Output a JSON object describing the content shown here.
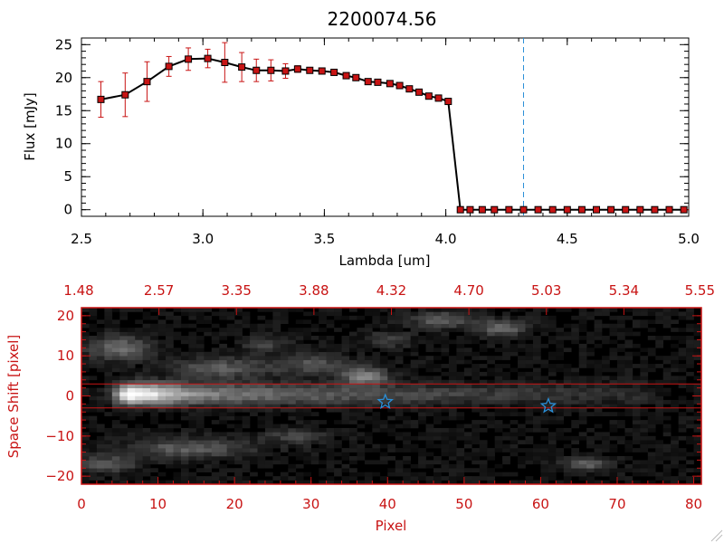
{
  "chart_data": [
    {
      "type": "line",
      "title": "2200074.56",
      "xlabel": "Lambda [um]",
      "ylabel": "Flux [mJy]",
      "xlim": [
        2.5,
        5.0
      ],
      "ylim": [
        -1,
        26
      ],
      "x_ticks": [
        2.5,
        3.0,
        3.5,
        4.0,
        4.5,
        5.0
      ],
      "x_tick_labels": [
        "2.5",
        "3.0",
        "3.5",
        "4.0",
        "4.5",
        "5.0"
      ],
      "y_ticks": [
        0,
        5,
        10,
        15,
        20,
        25
      ],
      "y_tick_labels": [
        "0",
        "5",
        "10",
        "15",
        "20",
        "25"
      ],
      "series": [
        {
          "x": [
            2.58,
            2.68,
            2.77,
            2.86,
            2.94,
            3.02,
            3.09,
            3.16,
            3.22,
            3.28,
            3.34,
            3.39,
            3.44,
            3.49,
            3.54,
            3.59,
            3.63,
            3.68,
            3.72,
            3.77,
            3.81,
            3.85,
            3.89,
            3.93,
            3.97,
            4.01,
            4.06,
            4.1,
            4.15,
            4.2,
            4.26,
            4.32,
            4.38,
            4.44,
            4.5,
            4.56,
            4.62,
            4.68,
            4.74,
            4.8,
            4.86,
            4.92,
            4.98
          ],
          "y": [
            16.7,
            17.4,
            19.4,
            21.7,
            22.8,
            22.9,
            22.3,
            21.6,
            21.1,
            21.1,
            21.0,
            21.3,
            21.1,
            21.0,
            20.8,
            20.3,
            20.0,
            19.4,
            19.3,
            19.1,
            18.8,
            18.3,
            17.8,
            17.2,
            16.9,
            16.4,
            0,
            0,
            0,
            0,
            0,
            0,
            0,
            0,
            0,
            0,
            0,
            0,
            0,
            0,
            0,
            0,
            0
          ],
          "yerr": [
            2.7,
            3.3,
            3.0,
            1.5,
            1.7,
            1.4,
            3.0,
            2.2,
            1.7,
            1.6,
            1.1,
            0.5,
            0.4,
            0.3,
            0.3,
            0.3,
            0.3,
            0.3,
            0.3,
            0.3,
            0.3,
            0.3,
            0.3,
            0.3,
            0.3,
            0.3,
            0,
            0,
            0,
            0,
            0,
            0,
            0,
            0,
            0,
            0,
            0,
            0,
            0,
            0,
            0,
            0,
            0
          ],
          "line_color": "#000000",
          "marker_color": "#c81414",
          "error_color": "#c81414"
        }
      ],
      "vertical_dashed_line": {
        "x": 4.32,
        "color": "#2a8fd8"
      },
      "zero_dashed_line": {
        "y": 0,
        "color": "#c81414"
      }
    },
    {
      "type": "heatmap",
      "xlabel": "Pixel",
      "ylabel": "Space Shift [pixel]",
      "xlim": [
        0,
        81
      ],
      "ylim": [
        -22,
        22
      ],
      "x_ticks": [
        0,
        10,
        20,
        30,
        40,
        50,
        60,
        70,
        80
      ],
      "x_tick_labels": [
        "0",
        "10",
        "20",
        "30",
        "40",
        "50",
        "60",
        "70",
        "80"
      ],
      "y_ticks": [
        -20,
        -10,
        0,
        10,
        20
      ],
      "y_tick_labels": [
        "−20",
        "−10",
        "0",
        "10",
        "20"
      ],
      "top_ticks": [
        0,
        7.5,
        15,
        22.5,
        30,
        37.5,
        45,
        52.5,
        60
      ],
      "top_tick_labels": [
        "1.48",
        "2.57",
        "3.35",
        "3.88",
        "4.32",
        "4.70",
        "5.03",
        "5.34",
        "5.55"
      ],
      "extraction_lines": [
        3,
        -3
      ],
      "stars": [
        {
          "x": 39.7,
          "y": -1.5
        },
        {
          "x": 61.0,
          "y": -2.5
        }
      ],
      "axis_color": "#c81414",
      "star_color": "#2a8fd8",
      "colormap": "grayscale",
      "trace": {
        "center_y": 0.5,
        "peak_x": 6.5,
        "end_x": 73
      }
    }
  ]
}
